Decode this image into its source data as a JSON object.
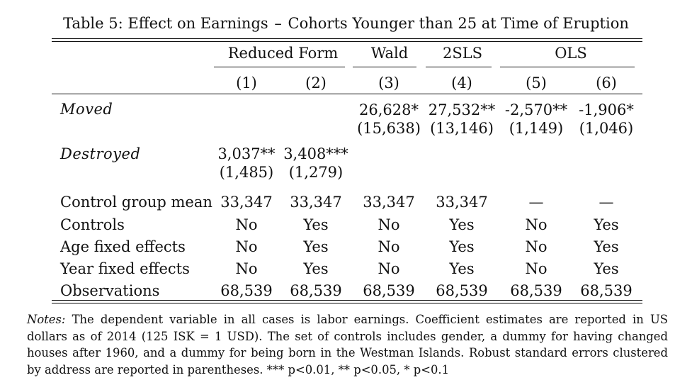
{
  "caption": {
    "label": "Table 5:",
    "text_a": "Effect on Earnings",
    "dash": "–",
    "text_b": "Cohorts Younger than 25 at Time of Eruption"
  },
  "column_groups": [
    {
      "label": "Reduced Form"
    },
    {
      "label": "Wald"
    },
    {
      "label": "2SLS"
    },
    {
      "label": "OLS"
    }
  ],
  "column_numbers": [
    "(1)",
    "(2)",
    "(3)",
    "(4)",
    "(5)",
    "(6)"
  ],
  "rows": {
    "moved": {
      "label": "Moved",
      "coef": [
        "",
        "",
        "26,628*",
        "27,532**",
        "-2,570**",
        "-1,906*"
      ],
      "se": [
        "",
        "",
        "(15,638)",
        "(13,146)",
        "(1,149)",
        "(1,046)"
      ]
    },
    "destroyed": {
      "label": "Destroyed",
      "coef": [
        "3,037**",
        "3,408***",
        "",
        "",
        "",
        ""
      ],
      "se": [
        "(1,485)",
        "(1,279)",
        "",
        "",
        "",
        ""
      ]
    },
    "control_mean": {
      "label": "Control group mean",
      "values": [
        "33,347",
        "33,347",
        "33,347",
        "33,347",
        "—",
        "—"
      ]
    },
    "controls": {
      "label": "Controls",
      "values": [
        "No",
        "Yes",
        "No",
        "Yes",
        "No",
        "Yes"
      ]
    },
    "age_fe": {
      "label": "Age fixed effects",
      "values": [
        "No",
        "Yes",
        "No",
        "Yes",
        "No",
        "Yes"
      ]
    },
    "year_fe": {
      "label": "Year fixed effects",
      "values": [
        "No",
        "Yes",
        "No",
        "Yes",
        "No",
        "Yes"
      ]
    },
    "observations": {
      "label": "Observations",
      "values": [
        "68,539",
        "68,539",
        "68,539",
        "68,539",
        "68,539",
        "68,539"
      ]
    }
  },
  "notes": {
    "lead": "Notes:",
    "text": "The dependent variable in all cases is labor earnings. Coefficient estimates are reported in US dollars as of 2014 (125 ISK = 1 USD). The set of controls includes gender, a dummy for having changed houses after 1960, and a dummy for being born in the Westman Islands. Robust standard errors clustered by address are reported in parentheses. *** p<0.01, ** p<0.05, * p<0.1"
  }
}
